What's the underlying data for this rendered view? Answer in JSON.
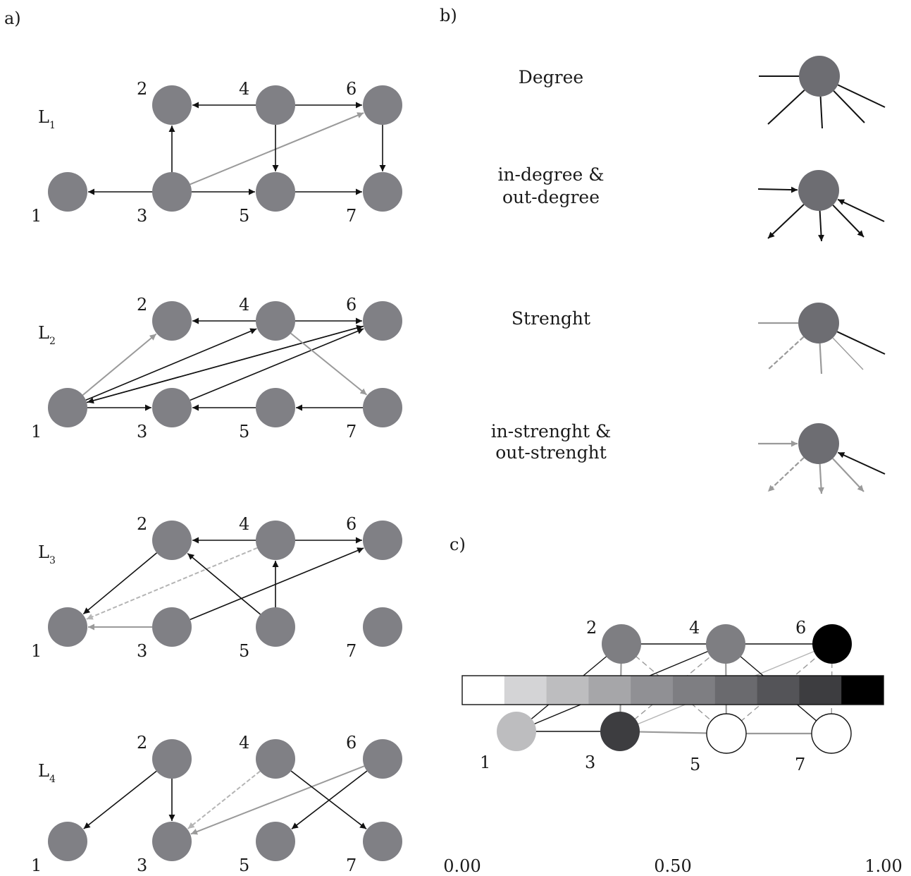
{
  "colors": {
    "node": "#808085",
    "node_dark": "#6d6d72",
    "edge_black": "#111111",
    "edge_gray": "#9a9a9a",
    "edge_lightgray": "#b5b5b5"
  },
  "panel_a": {
    "label": "a)",
    "layers": [
      {
        "name": "L",
        "sub": "1",
        "nodes": [
          "1",
          "2",
          "3",
          "4",
          "5",
          "6",
          "7"
        ],
        "edges": [
          {
            "from": "3",
            "to": "1",
            "color": "black"
          },
          {
            "from": "3",
            "to": "2",
            "color": "black"
          },
          {
            "from": "3",
            "to": "5",
            "color": "black"
          },
          {
            "from": "3",
            "to": "6",
            "color": "gray"
          },
          {
            "from": "4",
            "to": "2",
            "color": "black"
          },
          {
            "from": "4",
            "to": "6",
            "color": "black"
          },
          {
            "from": "4",
            "to": "5",
            "color": "black"
          },
          {
            "from": "5",
            "to": "7",
            "color": "black"
          },
          {
            "from": "6",
            "to": "7",
            "color": "black"
          }
        ]
      },
      {
        "name": "L",
        "sub": "2",
        "nodes": [
          "1",
          "2",
          "3",
          "4",
          "5",
          "6",
          "7"
        ],
        "edges": [
          {
            "from": "1",
            "to": "2",
            "color": "gray"
          },
          {
            "from": "1",
            "to": "4",
            "color": "black"
          },
          {
            "from": "1",
            "to": "6",
            "color": "black"
          },
          {
            "from": "6",
            "to": "1",
            "color": "black"
          },
          {
            "from": "1",
            "to": "3",
            "color": "black"
          },
          {
            "from": "3",
            "to": "6",
            "color": "black"
          },
          {
            "from": "4",
            "to": "2",
            "color": "black"
          },
          {
            "from": "4",
            "to": "6",
            "color": "black"
          },
          {
            "from": "4",
            "to": "7",
            "color": "gray"
          },
          {
            "from": "5",
            "to": "3",
            "color": "black"
          },
          {
            "from": "7",
            "to": "5",
            "color": "black"
          }
        ]
      },
      {
        "name": "L",
        "sub": "3",
        "nodes": [
          "1",
          "2",
          "3",
          "4",
          "5",
          "6",
          "7"
        ],
        "edges": [
          {
            "from": "2",
            "to": "1",
            "color": "black"
          },
          {
            "from": "4",
            "to": "1",
            "color": "lightgray",
            "dashed": true
          },
          {
            "from": "3",
            "to": "1",
            "color": "gray"
          },
          {
            "from": "3",
            "to": "6",
            "color": "black"
          },
          {
            "from": "4",
            "to": "2",
            "color": "black"
          },
          {
            "from": "4",
            "to": "6",
            "color": "black"
          },
          {
            "from": "5",
            "to": "2",
            "color": "black"
          },
          {
            "from": "5",
            "to": "4",
            "color": "black"
          }
        ]
      },
      {
        "name": "L",
        "sub": "4",
        "nodes": [
          "1",
          "2",
          "3",
          "4",
          "5",
          "6",
          "7"
        ],
        "edges": [
          {
            "from": "2",
            "to": "1",
            "color": "black"
          },
          {
            "from": "2",
            "to": "3",
            "color": "black"
          },
          {
            "from": "4",
            "to": "3",
            "color": "lightgray",
            "dashed": true
          },
          {
            "from": "6",
            "to": "3",
            "color": "gray"
          },
          {
            "from": "4",
            "to": "7",
            "color": "black"
          },
          {
            "from": "6",
            "to": "5",
            "color": "black"
          }
        ]
      }
    ]
  },
  "panel_b": {
    "label": "b)",
    "concepts": [
      {
        "label_lines": [
          "Degree"
        ]
      },
      {
        "label_lines": [
          "in-degree &",
          "out-degree"
        ]
      },
      {
        "label_lines": [
          "Strenght"
        ]
      },
      {
        "label_lines": [
          "in-strenght &",
          "out-strenght"
        ]
      }
    ]
  },
  "panel_c": {
    "label": "c)",
    "nodes": [
      {
        "id": "1",
        "value": 0.2
      },
      {
        "id": "2",
        "value": 0.5
      },
      {
        "id": "3",
        "value": 0.85
      },
      {
        "id": "4",
        "value": 0.5
      },
      {
        "id": "5",
        "value": 0.0
      },
      {
        "id": "6",
        "value": 1.0
      },
      {
        "id": "7",
        "value": 0.0
      }
    ],
    "edges": [
      {
        "from": "1",
        "to": "2",
        "color": "black"
      },
      {
        "from": "1",
        "to": "3",
        "color": "black"
      },
      {
        "from": "1",
        "to": "4",
        "color": "black"
      },
      {
        "from": "2",
        "to": "4",
        "color": "black"
      },
      {
        "from": "2",
        "to": "3",
        "color": "gray"
      },
      {
        "from": "2",
        "to": "5",
        "color": "gray",
        "dashed": true
      },
      {
        "from": "3",
        "to": "4",
        "color": "gray",
        "dashed": true
      },
      {
        "from": "3",
        "to": "6",
        "color": "lightgray"
      },
      {
        "from": "3",
        "to": "5",
        "color": "gray"
      },
      {
        "from": "4",
        "to": "6",
        "color": "black"
      },
      {
        "from": "4",
        "to": "5",
        "color": "gray"
      },
      {
        "from": "4",
        "to": "7",
        "color": "black"
      },
      {
        "from": "5",
        "to": "6",
        "color": "gray",
        "dashed": true
      },
      {
        "from": "5",
        "to": "7",
        "color": "gray"
      },
      {
        "from": "6",
        "to": "7",
        "color": "gray",
        "dashed": true
      }
    ],
    "colorbar": {
      "steps": [
        "#ffffff",
        "#d4d4d6",
        "#bdbdbf",
        "#a6a6a9",
        "#909094",
        "#7e7e82",
        "#6a6a6e",
        "#545458",
        "#3d3d40",
        "#000000"
      ],
      "ticks": [
        "0.00",
        "0.50",
        "1.00"
      ]
    }
  }
}
